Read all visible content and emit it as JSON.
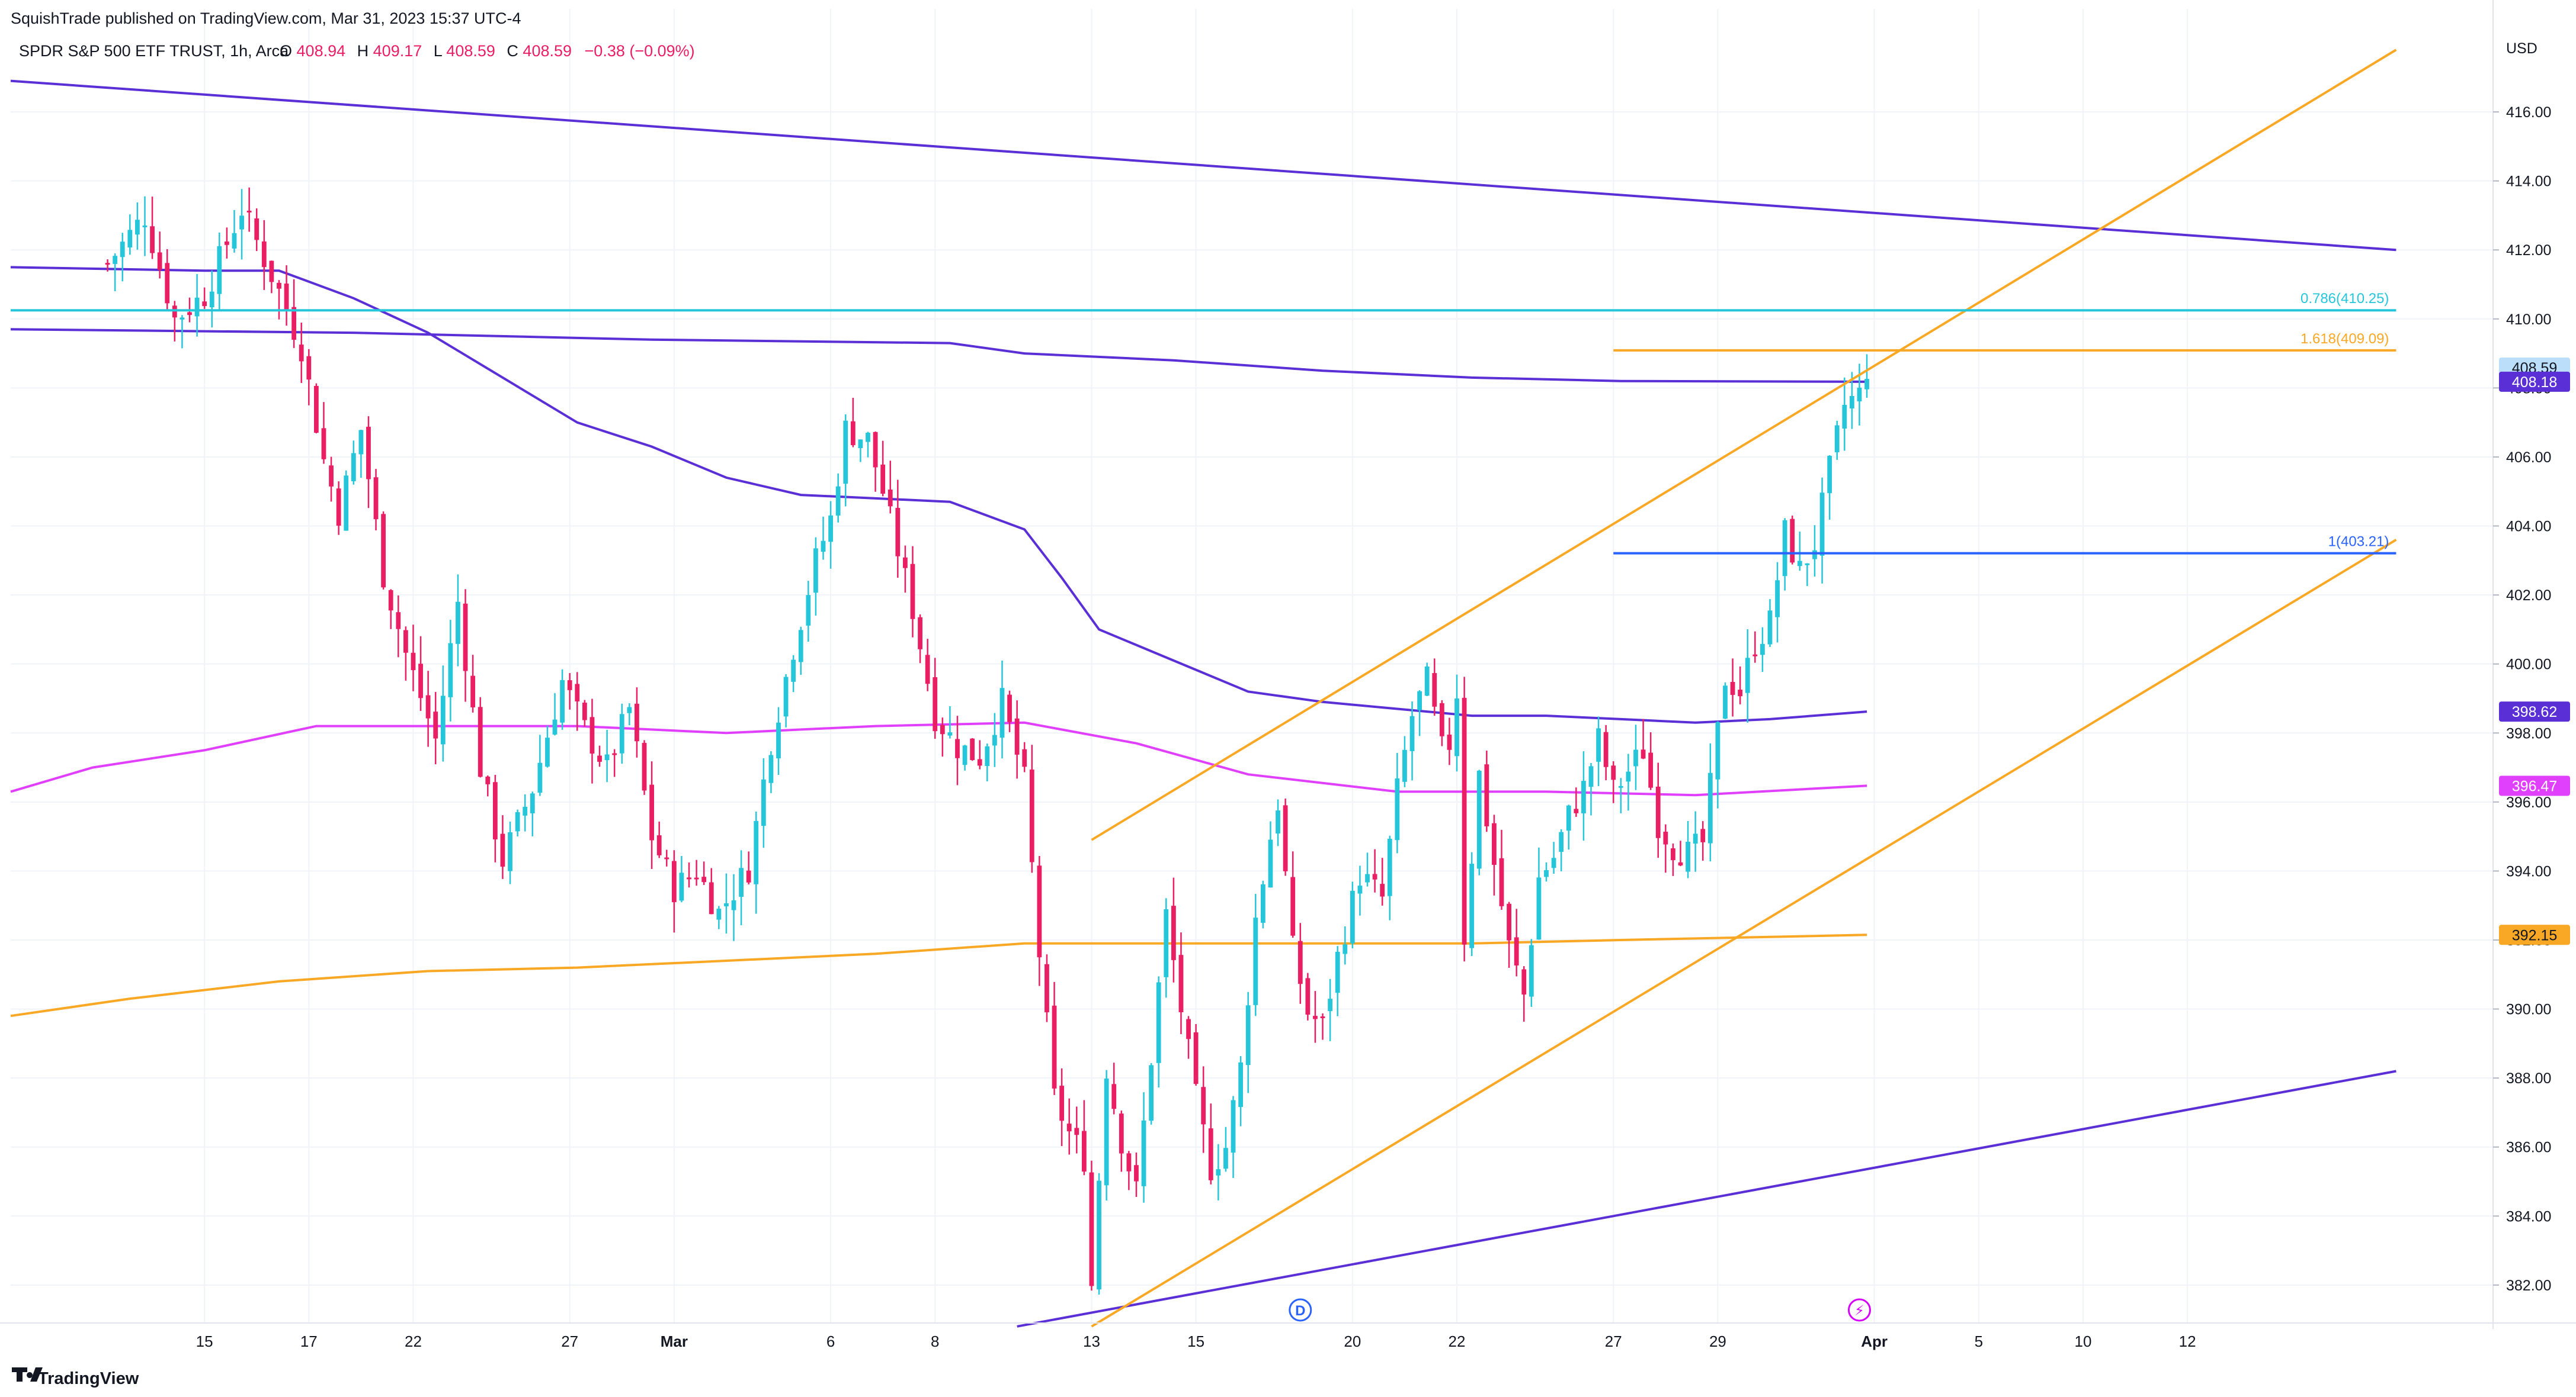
{
  "header": {
    "published_line": "SquishTrade published on TradingView.com, Mar 31, 2023 15:37 UTC-4",
    "symbol_line": "SPDR S&P 500 ETF TRUST, 1h, Arca",
    "ohlc": {
      "o_label": "O",
      "o_value": "408.94",
      "h_label": "H",
      "h_value": "409.17",
      "l_label": "L",
      "l_value": "408.59",
      "c_label": "C",
      "c_value": "408.59",
      "change": "−0.38 (−0.09%)"
    }
  },
  "footer": {
    "brand": "TradingView"
  },
  "colors": {
    "up": "#26c6da",
    "down": "#e91e63",
    "grid": "#f0f3fa",
    "ma_blue": "#5b2fd6",
    "ma_pink": "#e040fb",
    "ma_orange": "#f9a825",
    "channel": "#f9a825",
    "trend_blue": "#5b2fd6",
    "fib_cyan": "#26c6da",
    "fib_orange": "#f9a825",
    "fib_blue": "#2962ff",
    "marker_d": "#2962ff",
    "marker_e": "#d500f9"
  },
  "chart_data": {
    "type": "candlestick",
    "y_axis": {
      "unit": "USD",
      "min": 380.9,
      "max": 418.3,
      "ticks": [
        382,
        384,
        386,
        388,
        390,
        392,
        394,
        396,
        398,
        400,
        402,
        404,
        406,
        408,
        410,
        412,
        414,
        416
      ],
      "tick_labels": [
        "382.00",
        "384.00",
        "386.00",
        "388.00",
        "390.00",
        "392.00",
        "394.00",
        "396.00",
        "398.00",
        "400.00",
        "402.00",
        "404.00",
        "406.00",
        "408.00",
        "410.00",
        "412.00",
        "414.00",
        "416.00"
      ],
      "price_tags": [
        {
          "label": "408.59",
          "value": 408.59,
          "color": "#bbdefb",
          "text_color": "#131722"
        },
        {
          "label": "408.18",
          "value": 408.18,
          "color": "#5b2fd6",
          "text_color": "#ffffff"
        },
        {
          "label": "398.62",
          "value": 398.62,
          "color": "#5b2fd6",
          "text_color": "#ffffff"
        },
        {
          "label": "396.47",
          "value": 396.47,
          "color": "#e040fb",
          "text_color": "#ffffff"
        },
        {
          "label": "392.15",
          "value": 392.15,
          "color": "#f9a825",
          "text_color": "#131722"
        }
      ]
    },
    "x_axis": {
      "min_index": -26,
      "max_index": 307,
      "labels": [
        {
          "text": "15",
          "index": 0
        },
        {
          "text": "17",
          "index": 14
        },
        {
          "text": "22",
          "index": 28
        },
        {
          "text": "27",
          "index": 49
        },
        {
          "text": "Mar",
          "index": 63
        },
        {
          "text": "6",
          "index": 84
        },
        {
          "text": "8",
          "index": 98
        },
        {
          "text": "13",
          "index": 119
        },
        {
          "text": "15",
          "index": 133
        },
        {
          "text": "20",
          "index": 154
        },
        {
          "text": "22",
          "index": 168
        },
        {
          "text": "27",
          "index": 189
        },
        {
          "text": "29",
          "index": 203
        },
        {
          "text": "Apr",
          "index": 224
        },
        {
          "text": "5",
          "index": 238
        },
        {
          "text": "10",
          "index": 252
        },
        {
          "text": "12",
          "index": 266
        }
      ]
    },
    "candles_close_path": [
      {
        "i": -13,
        "c": 411.6
      },
      {
        "i": -8,
        "c": 413.0
      },
      {
        "i": -4,
        "c": 410.0
      },
      {
        "i": 0,
        "c": 410.7
      },
      {
        "i": 5,
        "c": 413.2
      },
      {
        "i": 10,
        "c": 410.8
      },
      {
        "i": 13,
        "c": 409.2
      },
      {
        "i": 16,
        "c": 405.9
      },
      {
        "i": 18,
        "c": 404.4
      },
      {
        "i": 21,
        "c": 406.8
      },
      {
        "i": 24,
        "c": 402.6
      },
      {
        "i": 27,
        "c": 400.3
      },
      {
        "i": 31,
        "c": 397.8
      },
      {
        "i": 34,
        "c": 401.8
      },
      {
        "i": 37,
        "c": 397.0
      },
      {
        "i": 40,
        "c": 394.3
      },
      {
        "i": 44,
        "c": 396.4
      },
      {
        "i": 48,
        "c": 399.5
      },
      {
        "i": 51,
        "c": 398.1
      },
      {
        "i": 54,
        "c": 397.0
      },
      {
        "i": 57,
        "c": 398.7
      },
      {
        "i": 60,
        "c": 395.0
      },
      {
        "i": 63,
        "c": 393.5
      },
      {
        "i": 66,
        "c": 394.0
      },
      {
        "i": 69,
        "c": 392.8
      },
      {
        "i": 73,
        "c": 394.1
      },
      {
        "i": 76,
        "c": 397.8
      },
      {
        "i": 79,
        "c": 400.5
      },
      {
        "i": 82,
        "c": 403.0
      },
      {
        "i": 84,
        "c": 404.2
      },
      {
        "i": 86,
        "c": 406.8
      },
      {
        "i": 89,
        "c": 406.5
      },
      {
        "i": 91,
        "c": 405.0
      },
      {
        "i": 95,
        "c": 401.6
      },
      {
        "i": 98,
        "c": 398.5
      },
      {
        "i": 101,
        "c": 397.6
      },
      {
        "i": 104,
        "c": 397.3
      },
      {
        "i": 107,
        "c": 398.9
      },
      {
        "i": 110,
        "c": 396.6
      },
      {
        "i": 112,
        "c": 391.6
      },
      {
        "i": 114,
        "c": 387.4
      },
      {
        "i": 116,
        "c": 386.4
      },
      {
        "i": 118,
        "c": 385.7
      },
      {
        "i": 119,
        "c": 382.0
      },
      {
        "i": 121,
        "c": 388.3
      },
      {
        "i": 123,
        "c": 386.2
      },
      {
        "i": 125,
        "c": 384.7
      },
      {
        "i": 127,
        "c": 388.6
      },
      {
        "i": 129,
        "c": 392.7
      },
      {
        "i": 131,
        "c": 390.0
      },
      {
        "i": 133,
        "c": 387.4
      },
      {
        "i": 135,
        "c": 385.4
      },
      {
        "i": 137,
        "c": 386.0
      },
      {
        "i": 139,
        "c": 388.3
      },
      {
        "i": 141,
        "c": 392.6
      },
      {
        "i": 143,
        "c": 395.0
      },
      {
        "i": 144,
        "c": 396.0
      },
      {
        "i": 146,
        "c": 391.7
      },
      {
        "i": 148,
        "c": 389.9
      },
      {
        "i": 150,
        "c": 389.5
      },
      {
        "i": 152,
        "c": 391.5
      },
      {
        "i": 155,
        "c": 393.9
      },
      {
        "i": 158,
        "c": 393.2
      },
      {
        "i": 160,
        "c": 396.3
      },
      {
        "i": 162,
        "c": 398.5
      },
      {
        "i": 164,
        "c": 399.5
      },
      {
        "i": 166,
        "c": 397.5
      },
      {
        "i": 167,
        "c": 397.7
      },
      {
        "i": 168,
        "c": 399.2
      },
      {
        "i": 169,
        "c": 392.1
      },
      {
        "i": 171,
        "c": 396.8
      },
      {
        "i": 173,
        "c": 394.2
      },
      {
        "i": 175,
        "c": 391.8
      },
      {
        "i": 177,
        "c": 390.4
      },
      {
        "i": 179,
        "c": 393.8
      },
      {
        "i": 181,
        "c": 394.4
      },
      {
        "i": 183,
        "c": 395.6
      },
      {
        "i": 185,
        "c": 396.4
      },
      {
        "i": 187,
        "c": 397.8
      },
      {
        "i": 189,
        "c": 396.3
      },
      {
        "i": 191,
        "c": 396.9
      },
      {
        "i": 193,
        "c": 397.5
      },
      {
        "i": 195,
        "c": 395.4
      },
      {
        "i": 197,
        "c": 394.7
      },
      {
        "i": 199,
        "c": 394.5
      },
      {
        "i": 201,
        "c": 394.8
      },
      {
        "i": 204,
        "c": 399.6
      },
      {
        "i": 206,
        "c": 399.2
      },
      {
        "i": 208,
        "c": 400.6
      },
      {
        "i": 210,
        "c": 401.2
      },
      {
        "i": 212,
        "c": 403.8
      },
      {
        "i": 214,
        "c": 402.7
      },
      {
        "i": 216,
        "c": 403.5
      },
      {
        "i": 218,
        "c": 405.6
      },
      {
        "i": 220,
        "c": 407.5
      },
      {
        "i": 222,
        "c": 407.8
      },
      {
        "i": 223,
        "c": 408.59
      }
    ],
    "moving_averages": [
      {
        "key": "ma_blue",
        "points": [
          {
            "i": -26,
            "c": 411.5
          },
          {
            "i": 0,
            "c": 411.4
          },
          {
            "i": 10,
            "c": 411.4
          },
          {
            "i": 20,
            "c": 410.6
          },
          {
            "i": 30,
            "c": 409.6
          },
          {
            "i": 40,
            "c": 408.3
          },
          {
            "i": 50,
            "c": 407.0
          },
          {
            "i": 60,
            "c": 406.3
          },
          {
            "i": 70,
            "c": 405.4
          },
          {
            "i": 80,
            "c": 404.9
          },
          {
            "i": 90,
            "c": 404.8
          },
          {
            "i": 100,
            "c": 404.7
          },
          {
            "i": 110,
            "c": 403.9
          },
          {
            "i": 115,
            "c": 402.5
          },
          {
            "i": 120,
            "c": 401.0
          },
          {
            "i": 130,
            "c": 400.1
          },
          {
            "i": 140,
            "c": 399.2
          },
          {
            "i": 150,
            "c": 398.9
          },
          {
            "i": 160,
            "c": 398.7
          },
          {
            "i": 170,
            "c": 398.5
          },
          {
            "i": 180,
            "c": 398.5
          },
          {
            "i": 190,
            "c": 398.4
          },
          {
            "i": 200,
            "c": 398.3
          },
          {
            "i": 210,
            "c": 398.4
          },
          {
            "i": 223,
            "c": 398.62
          }
        ]
      },
      {
        "key": "ma_blue",
        "points": [
          {
            "i": -26,
            "c": 409.7
          },
          {
            "i": 20,
            "c": 409.6
          },
          {
            "i": 60,
            "c": 409.4
          },
          {
            "i": 100,
            "c": 409.3
          },
          {
            "i": 110,
            "c": 409.0
          },
          {
            "i": 130,
            "c": 408.8
          },
          {
            "i": 150,
            "c": 408.5
          },
          {
            "i": 170,
            "c": 408.3
          },
          {
            "i": 190,
            "c": 408.2
          },
          {
            "i": 223,
            "c": 408.18
          }
        ]
      },
      {
        "key": "ma_pink",
        "points": [
          {
            "i": -26,
            "c": 396.3
          },
          {
            "i": -15,
            "c": 397.0
          },
          {
            "i": 0,
            "c": 397.5
          },
          {
            "i": 15,
            "c": 398.2
          },
          {
            "i": 30,
            "c": 398.2
          },
          {
            "i": 50,
            "c": 398.2
          },
          {
            "i": 70,
            "c": 398.0
          },
          {
            "i": 90,
            "c": 398.2
          },
          {
            "i": 110,
            "c": 398.3
          },
          {
            "i": 125,
            "c": 397.7
          },
          {
            "i": 140,
            "c": 396.8
          },
          {
            "i": 160,
            "c": 396.3
          },
          {
            "i": 180,
            "c": 396.3
          },
          {
            "i": 200,
            "c": 396.2
          },
          {
            "i": 223,
            "c": 396.47
          }
        ]
      },
      {
        "key": "ma_orange",
        "points": [
          {
            "i": -26,
            "c": 389.8
          },
          {
            "i": -10,
            "c": 390.3
          },
          {
            "i": 10,
            "c": 390.8
          },
          {
            "i": 30,
            "c": 391.1
          },
          {
            "i": 50,
            "c": 391.2
          },
          {
            "i": 70,
            "c": 391.4
          },
          {
            "i": 90,
            "c": 391.6
          },
          {
            "i": 110,
            "c": 391.9
          },
          {
            "i": 130,
            "c": 391.9
          },
          {
            "i": 150,
            "c": 391.9
          },
          {
            "i": 170,
            "c": 391.9
          },
          {
            "i": 190,
            "c": 392.0
          },
          {
            "i": 223,
            "c": 392.15
          }
        ]
      }
    ],
    "trend_lines": [
      {
        "key": "trend_blue",
        "from": {
          "i": -26,
          "c": 416.9
        },
        "to": {
          "i": 294,
          "c": 412.0
        }
      },
      {
        "key": "trend_blue",
        "from": {
          "i": 109,
          "c": 380.8
        },
        "to": {
          "i": 294,
          "c": 388.2
        }
      },
      {
        "key": "channel",
        "from": {
          "i": 119,
          "c": 394.9
        },
        "to": {
          "i": 294,
          "c": 417.8
        }
      },
      {
        "key": "channel",
        "from": {
          "i": 119,
          "c": 380.8
        },
        "to": {
          "i": 294,
          "c": 403.6
        }
      }
    ],
    "fib_levels": [
      {
        "label": "0.786(410.25)",
        "value": 410.25,
        "from_index": -26,
        "to_index": 294,
        "key": "fib_cyan"
      },
      {
        "label": "1.618(409.09)",
        "value": 409.09,
        "from_index": 189,
        "to_index": 294,
        "key": "fib_orange"
      },
      {
        "label": "1(403.21)",
        "value": 403.21,
        "from_index": 189,
        "to_index": 294,
        "key": "fib_blue"
      }
    ],
    "markers": [
      {
        "label": "D",
        "index": 147,
        "key": "marker_d"
      },
      {
        "label": "⚡",
        "index": 222,
        "key": "marker_e"
      }
    ]
  }
}
